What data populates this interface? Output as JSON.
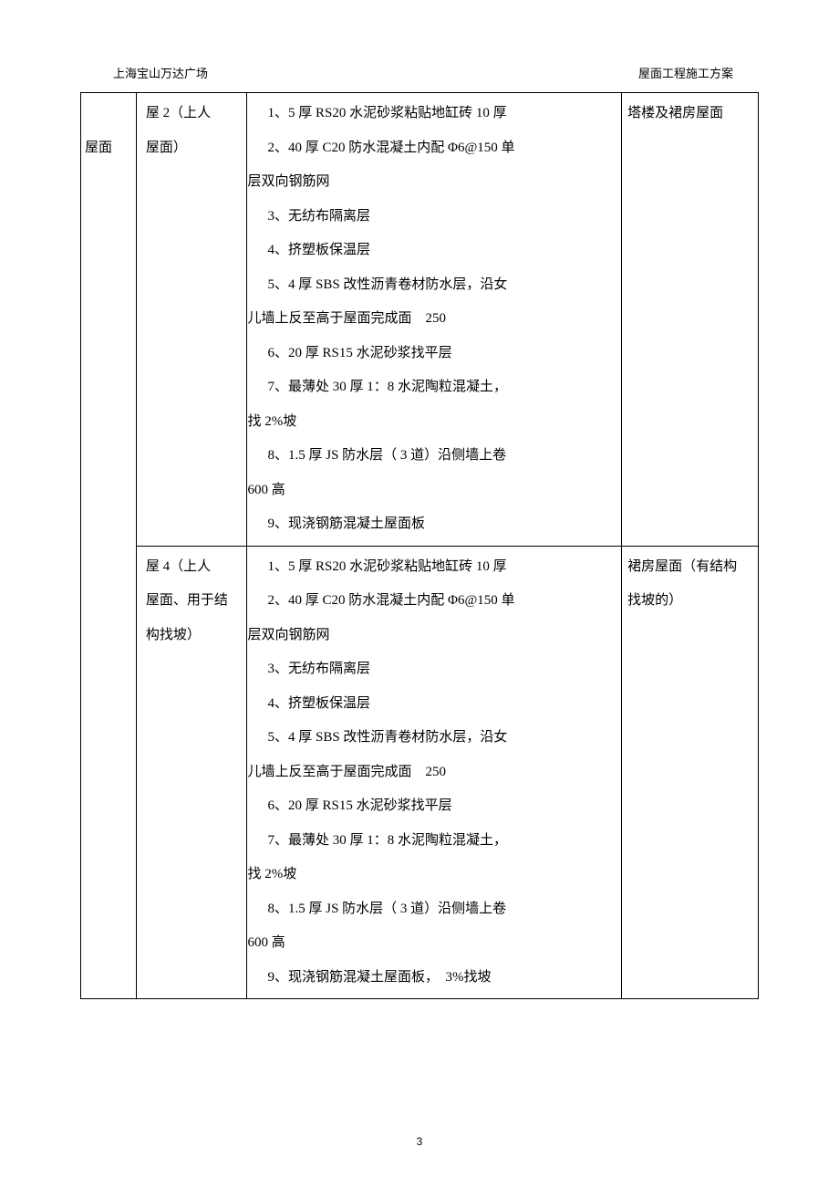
{
  "header": {
    "left": "上海宝山万达广场",
    "right": "屋面工程施工方案"
  },
  "page_number": "3",
  "table": {
    "col1_label": "屋面",
    "rows": [
      {
        "col2_lines": [
          "屋 2（上人",
          "屋面）"
        ],
        "col3_items": [
          {
            "type": "item",
            "text": "1、5 厚 RS20 水泥砂浆粘贴地缸砖 10 厚"
          },
          {
            "type": "item",
            "text": "2、40 厚 C20 防水混凝土内配 Φ6@150 单"
          },
          {
            "type": "cont",
            "text": "层双向钢筋网"
          },
          {
            "type": "item",
            "text": "3、无纺布隔离层"
          },
          {
            "type": "item",
            "text": "4、挤塑板保温层"
          },
          {
            "type": "item",
            "text": "5、4 厚 SBS 改性沥青卷材防水层，沿女"
          },
          {
            "type": "cont",
            "text": "儿墙上反至高于屋面完成面　250"
          },
          {
            "type": "item",
            "text": "6、20 厚 RS15 水泥砂浆找平层"
          },
          {
            "type": "item",
            "text": "7、最薄处 30 厚 1：8 水泥陶粒混凝土，"
          },
          {
            "type": "cont",
            "text": "找 2%坡"
          },
          {
            "type": "item",
            "text": "8、1.5 厚 JS 防水层（ 3 道）沿侧墙上卷"
          },
          {
            "type": "cont",
            "text": "600 高"
          },
          {
            "type": "item",
            "text": "9、现浇钢筋混凝土屋面板"
          }
        ],
        "col4_lines": [
          "塔楼及裙房屋面"
        ]
      },
      {
        "col2_lines": [
          "屋 4（上人",
          "屋面、用于结",
          "构找坡）"
        ],
        "col3_items": [
          {
            "type": "item",
            "text": "1、5 厚 RS20 水泥砂浆粘贴地缸砖 10 厚"
          },
          {
            "type": "item",
            "text": "2、40 厚 C20 防水混凝土内配 Φ6@150 单"
          },
          {
            "type": "cont",
            "text": "层双向钢筋网"
          },
          {
            "type": "item",
            "text": "3、无纺布隔离层"
          },
          {
            "type": "item",
            "text": "4、挤塑板保温层"
          },
          {
            "type": "item",
            "text": "5、4 厚 SBS 改性沥青卷材防水层，沿女"
          },
          {
            "type": "cont",
            "text": "儿墙上反至高于屋面完成面　250"
          },
          {
            "type": "item",
            "text": "6、20 厚 RS15 水泥砂浆找平层"
          },
          {
            "type": "item",
            "text": "7、最薄处 30 厚 1：8 水泥陶粒混凝土，"
          },
          {
            "type": "cont",
            "text": "找 2%坡"
          },
          {
            "type": "item",
            "text": "8、1.5 厚 JS 防水层（ 3 道）沿侧墙上卷"
          },
          {
            "type": "cont",
            "text": "600 高"
          },
          {
            "type": "item",
            "text": "9、现浇钢筋混凝土屋面板，　3%找坡"
          }
        ],
        "col4_lines": [
          "裙房屋面（有结构",
          "找坡的）"
        ]
      }
    ]
  },
  "colors": {
    "text": "#000000",
    "border": "#000000",
    "background": "#ffffff"
  },
  "fonts": {
    "body_size": 15,
    "header_size": 13,
    "page_num_size": 12,
    "line_height": 2.5
  }
}
